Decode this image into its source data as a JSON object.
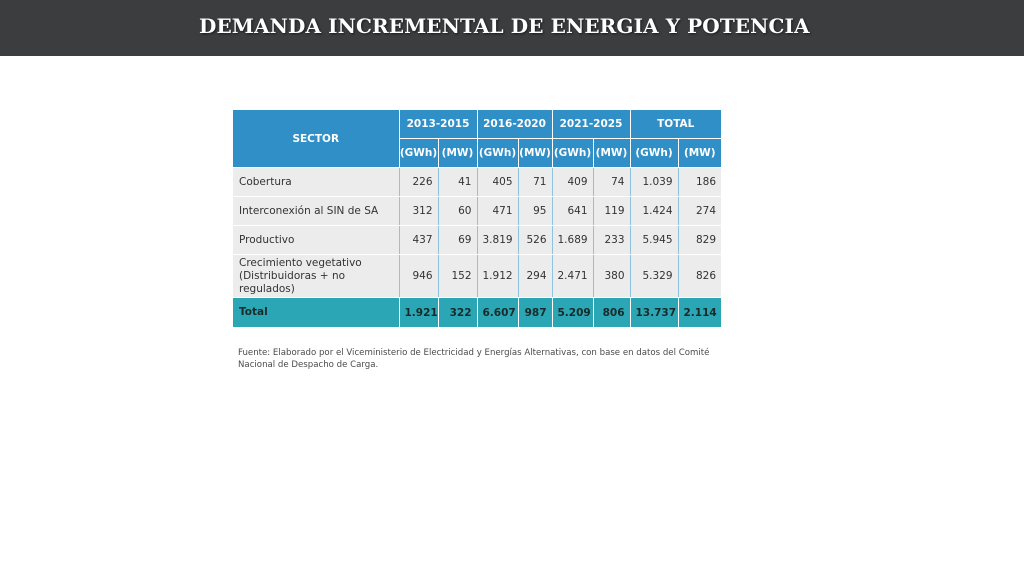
{
  "slide": {
    "title": "DEMANDA INCREMENTAL DE ENERGIA Y POTENCIA"
  },
  "table": {
    "sector_header": "SECTOR",
    "periods": [
      "2013-2015",
      "2016-2020",
      "2021-2025",
      "TOTAL"
    ],
    "units": [
      "(GWh)",
      "(MW)",
      "(GWh)",
      "(MW)",
      "(GWh)",
      "(MW)",
      "(GWh)",
      "(MW)"
    ],
    "rows": [
      {
        "label": "Cobertura",
        "values": [
          "226",
          "41",
          "405",
          "71",
          "409",
          "74",
          "1.039",
          "186"
        ]
      },
      {
        "label": "Interconexión al SIN de SA",
        "values": [
          "312",
          "60",
          "471",
          "95",
          "641",
          "119",
          "1.424",
          "274"
        ]
      },
      {
        "label": "Productivo",
        "values": [
          "437",
          "69",
          "3.819",
          "526",
          "1.689",
          "233",
          "5.945",
          "829"
        ]
      },
      {
        "label_line1": "Crecimiento vegetativo",
        "label_line2": "(Distribuidoras + no regulados)",
        "values": [
          "946",
          "152",
          "1.912",
          "294",
          "2.471",
          "380",
          "5.329",
          "826"
        ]
      }
    ],
    "total": {
      "label": "Total",
      "values": [
        "1.921",
        "322",
        "6.607",
        "987",
        "5.209",
        "806",
        "13.737",
        "2.114"
      ]
    },
    "colors": {
      "header": "#2f8fc6",
      "body": "#ececec",
      "total": "#2aa6b4",
      "title_bar": "#3c3d3f"
    }
  },
  "footnote": {
    "line1": "Fuente: Elaborado por el Viceministerio de Electricidad y Energías Alternativas, con base en datos del Comité",
    "line2": "Nacional de Despacho de Carga."
  }
}
